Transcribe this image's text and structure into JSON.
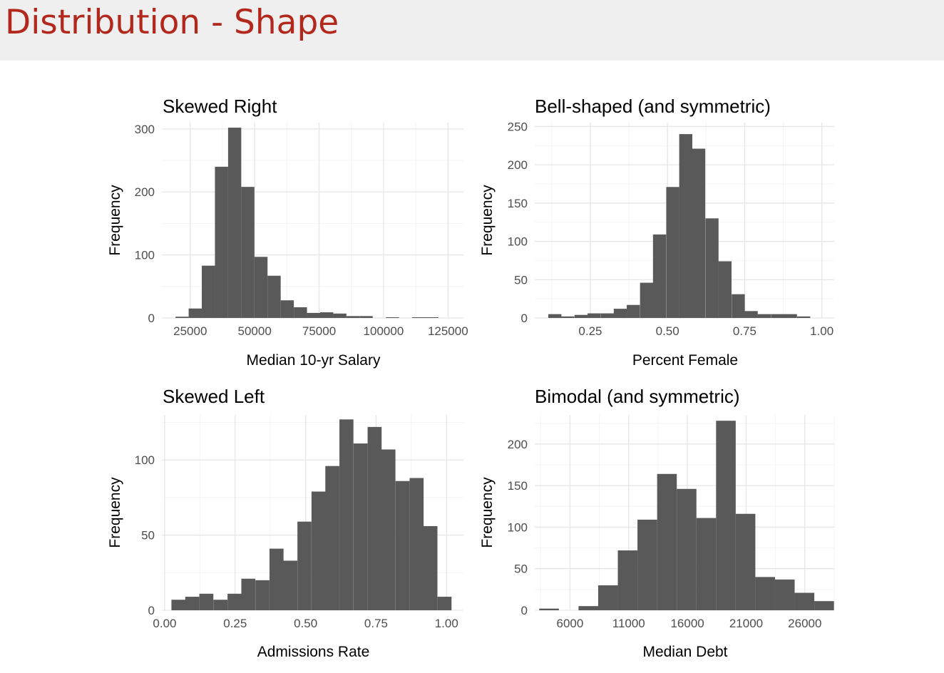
{
  "slide": {
    "title": "Distribution - Shape",
    "title_color": "#b3281d",
    "header_background": "#efefef"
  },
  "bar_color": "#595959",
  "chart_data": [
    {
      "type": "bar",
      "title": "Skewed Right",
      "xlabel": "Median 10-yr Salary",
      "ylabel": "Frequency",
      "xlim": [
        14000,
        131000
      ],
      "ylim": [
        0,
        310
      ],
      "xticks": [
        25000,
        50000,
        75000,
        100000,
        125000
      ],
      "xtick_labels": [
        "25000",
        "50000",
        "75000",
        "100000",
        "125000"
      ],
      "yticks": [
        0,
        100,
        200,
        300
      ],
      "ytick_labels": [
        "0",
        "100",
        "200",
        "300"
      ],
      "bin_width": 5100,
      "bins": [
        {
          "x0": 19300,
          "count": 2
        },
        {
          "x0": 24400,
          "count": 15
        },
        {
          "x0": 29500,
          "count": 83
        },
        {
          "x0": 34600,
          "count": 240
        },
        {
          "x0": 39700,
          "count": 302
        },
        {
          "x0": 44800,
          "count": 208
        },
        {
          "x0": 49900,
          "count": 97
        },
        {
          "x0": 55000,
          "count": 67
        },
        {
          "x0": 60100,
          "count": 28
        },
        {
          "x0": 65200,
          "count": 17
        },
        {
          "x0": 70300,
          "count": 8
        },
        {
          "x0": 75400,
          "count": 9
        },
        {
          "x0": 80500,
          "count": 7
        },
        {
          "x0": 85600,
          "count": 3
        },
        {
          "x0": 90700,
          "count": 3
        },
        {
          "x0": 95800,
          "count": 0
        },
        {
          "x0": 100900,
          "count": 1
        },
        {
          "x0": 106000,
          "count": 0
        },
        {
          "x0": 111100,
          "count": 1
        },
        {
          "x0": 116200,
          "count": 1
        }
      ]
    },
    {
      "type": "bar",
      "title": "Bell-shaped (and symmetric)",
      "xlabel": "Percent Female",
      "ylabel": "Frequency",
      "xlim": [
        0.07,
        1.04
      ],
      "ylim": [
        0,
        255
      ],
      "xticks": [
        0.25,
        0.5,
        0.75,
        1.0
      ],
      "xtick_labels": [
        "0.25",
        "0.50",
        "0.75",
        "1.00"
      ],
      "yticks": [
        0,
        50,
        100,
        150,
        200,
        250
      ],
      "ytick_labels": [
        "0",
        "50",
        "100",
        "150",
        "200",
        "250"
      ],
      "bin_width": 0.0424,
      "bins": [
        {
          "x0": 0.114,
          "count": 5
        },
        {
          "x0": 0.156,
          "count": 2
        },
        {
          "x0": 0.199,
          "count": 4
        },
        {
          "x0": 0.241,
          "count": 6
        },
        {
          "x0": 0.284,
          "count": 6
        },
        {
          "x0": 0.326,
          "count": 12
        },
        {
          "x0": 0.368,
          "count": 17
        },
        {
          "x0": 0.411,
          "count": 46
        },
        {
          "x0": 0.453,
          "count": 109
        },
        {
          "x0": 0.496,
          "count": 171
        },
        {
          "x0": 0.538,
          "count": 240
        },
        {
          "x0": 0.58,
          "count": 221
        },
        {
          "x0": 0.623,
          "count": 130
        },
        {
          "x0": 0.665,
          "count": 74
        },
        {
          "x0": 0.708,
          "count": 31
        },
        {
          "x0": 0.75,
          "count": 9
        },
        {
          "x0": 0.792,
          "count": 5
        },
        {
          "x0": 0.835,
          "count": 5
        },
        {
          "x0": 0.877,
          "count": 5
        },
        {
          "x0": 0.92,
          "count": 2
        }
      ]
    },
    {
      "type": "bar",
      "title": "Skewed Left",
      "xlabel": "Admissions Rate",
      "ylabel": "Frequency",
      "xlim": [
        -0.01,
        1.06
      ],
      "ylim": [
        0,
        130
      ],
      "xticks": [
        0.0,
        0.25,
        0.5,
        0.75,
        1.0
      ],
      "xtick_labels": [
        "0.00",
        "0.25",
        "0.50",
        "0.75",
        "1.00"
      ],
      "yticks": [
        0,
        50,
        100
      ],
      "ytick_labels": [
        "0",
        "50",
        "100"
      ],
      "bin_width": 0.0497,
      "bins": [
        {
          "x0": 0.024,
          "count": 7
        },
        {
          "x0": 0.073,
          "count": 9
        },
        {
          "x0": 0.123,
          "count": 11
        },
        {
          "x0": 0.173,
          "count": 7
        },
        {
          "x0": 0.223,
          "count": 11
        },
        {
          "x0": 0.272,
          "count": 21
        },
        {
          "x0": 0.322,
          "count": 20
        },
        {
          "x0": 0.372,
          "count": 41
        },
        {
          "x0": 0.421,
          "count": 33
        },
        {
          "x0": 0.471,
          "count": 59
        },
        {
          "x0": 0.521,
          "count": 79
        },
        {
          "x0": 0.57,
          "count": 96
        },
        {
          "x0": 0.62,
          "count": 127
        },
        {
          "x0": 0.67,
          "count": 111
        },
        {
          "x0": 0.72,
          "count": 122
        },
        {
          "x0": 0.769,
          "count": 107
        },
        {
          "x0": 0.819,
          "count": 86
        },
        {
          "x0": 0.869,
          "count": 88
        },
        {
          "x0": 0.918,
          "count": 56
        },
        {
          "x0": 0.968,
          "count": 9
        }
      ]
    },
    {
      "type": "bar",
      "title": "Bimodal (and symmetric)",
      "xlabel": "Median Debt",
      "ylabel": "Frequency",
      "xlim": [
        3000,
        28500
      ],
      "ylim": [
        0,
        235
      ],
      "xticks": [
        6000,
        11000,
        16000,
        21000,
        26000
      ],
      "xtick_labels": [
        "6000",
        "11000",
        "16000",
        "21000",
        "26000"
      ],
      "yticks": [
        0,
        50,
        100,
        150,
        200
      ],
      "ytick_labels": [
        "0",
        "50",
        "100",
        "150",
        "200"
      ],
      "bin_width": 1673,
      "bins": [
        {
          "x0": 3383,
          "count": 2
        },
        {
          "x0": 5056,
          "count": 0
        },
        {
          "x0": 6729,
          "count": 5
        },
        {
          "x0": 8402,
          "count": 30
        },
        {
          "x0": 10075,
          "count": 72
        },
        {
          "x0": 11748,
          "count": 109
        },
        {
          "x0": 13421,
          "count": 164
        },
        {
          "x0": 15094,
          "count": 146
        },
        {
          "x0": 16767,
          "count": 111
        },
        {
          "x0": 18440,
          "count": 228
        },
        {
          "x0": 20113,
          "count": 116
        },
        {
          "x0": 21786,
          "count": 40
        },
        {
          "x0": 23459,
          "count": 37
        },
        {
          "x0": 25132,
          "count": 21
        },
        {
          "x0": 26805,
          "count": 11
        }
      ]
    }
  ]
}
